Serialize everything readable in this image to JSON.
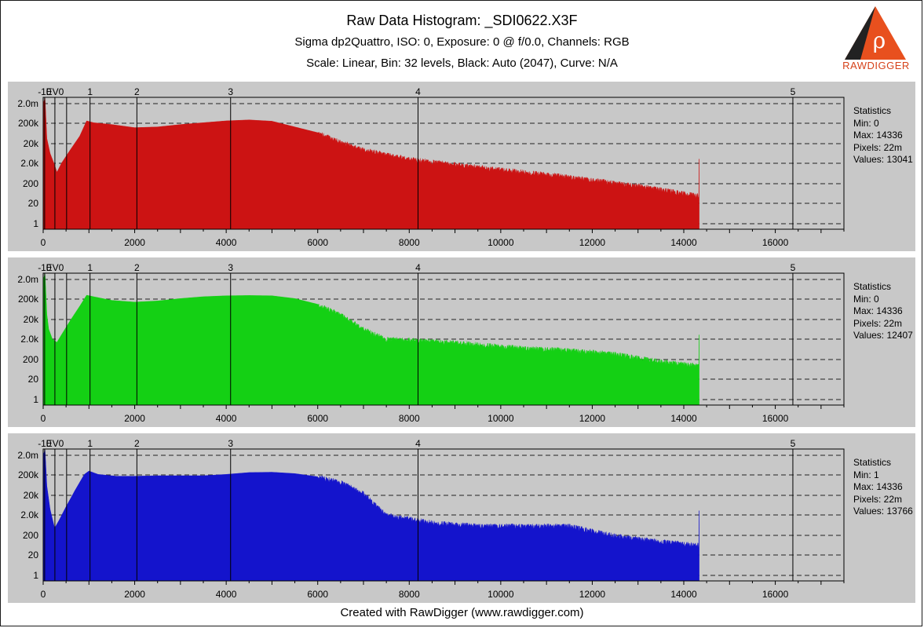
{
  "header": {
    "title": "Raw Data Histogram: _SDI0622.X3F",
    "subtitle": "Sigma dp2Quattro, ISO: 0, Exposure: 0 @ f/0.0, Channels: RGB",
    "scale_line": "Scale: Linear, Bin: 32 levels, Black: Auto (2047), Curve: N/A"
  },
  "logo": {
    "text": "RAWDIGGER",
    "icon": "rawdigger-triangle-logo-icon",
    "color": "#e8501e"
  },
  "footer": "Created with RawDigger (www.rawdigger.com)",
  "colors": {
    "red": "#cc1313",
    "green": "#14d014",
    "blue": "#1414cc",
    "panel_bg": "#c8c8c8"
  },
  "panels": [
    {
      "stats": {
        "title": "Statistics",
        "min": "Min: 0",
        "max": "Max: 14336",
        "pixels": "Pixels: 22m",
        "values": "Values: 13041"
      }
    },
    {
      "stats": {
        "title": "Statistics",
        "min": "Min: 0",
        "max": "Max: 14336",
        "pixels": "Pixels: 22m",
        "values": "Values: 12407"
      }
    },
    {
      "stats": {
        "title": "Statistics",
        "min": "Min: 1",
        "max": "Max: 14336",
        "pixels": "Pixels: 22m",
        "values": "Values: 13766"
      }
    }
  ],
  "chart_data": [
    {
      "type": "area",
      "channel": "red",
      "color": "#cc1313",
      "xlim": [
        0,
        17500
      ],
      "y_scale": "log",
      "y_ticks": [
        "1",
        "20",
        "200",
        "2.0k",
        "20k",
        "200k",
        "2.0m"
      ],
      "x_ticks": [
        0,
        2000,
        4000,
        6000,
        8000,
        10000,
        12000,
        14000,
        16000
      ],
      "ev_markers": [
        {
          "x": 32,
          "label": "-10"
        },
        {
          "x": 256,
          "label": "EV0"
        },
        {
          "x": 512,
          "label": ""
        },
        {
          "x": 1024,
          "label": "1"
        },
        {
          "x": 2048,
          "label": "2"
        },
        {
          "x": 4096,
          "label": "3"
        },
        {
          "x": 8192,
          "label": "4"
        },
        {
          "x": 16384,
          "label": "5"
        }
      ],
      "points": [
        [
          0,
          2000000
        ],
        [
          40,
          4000000
        ],
        [
          80,
          30000
        ],
        [
          150,
          5000
        ],
        [
          250,
          1200
        ],
        [
          300,
          500
        ],
        [
          400,
          1500
        ],
        [
          600,
          8000
        ],
        [
          800,
          40000
        ],
        [
          950,
          250000
        ],
        [
          1100,
          200000
        ],
        [
          1500,
          160000
        ],
        [
          2000,
          110000
        ],
        [
          2500,
          120000
        ],
        [
          3000,
          160000
        ],
        [
          3500,
          200000
        ],
        [
          4000,
          250000
        ],
        [
          4500,
          280000
        ],
        [
          5000,
          240000
        ],
        [
          5500,
          120000
        ],
        [
          6000,
          60000
        ],
        [
          6500,
          20000
        ],
        [
          7000,
          8000
        ],
        [
          8000,
          2500
        ],
        [
          9000,
          1300
        ],
        [
          10000,
          700
        ],
        [
          11000,
          400
        ],
        [
          12000,
          200
        ],
        [
          13000,
          100
        ],
        [
          14000,
          40
        ],
        [
          14330,
          30
        ],
        [
          14336,
          2500
        ]
      ]
    },
    {
      "type": "area",
      "channel": "green",
      "color": "#14d014",
      "xlim": [
        0,
        17500
      ],
      "y_scale": "log",
      "y_ticks": [
        "1",
        "20",
        "200",
        "2.0k",
        "20k",
        "200k",
        "2.0m"
      ],
      "x_ticks": [
        0,
        2000,
        4000,
        6000,
        8000,
        10000,
        12000,
        14000,
        16000
      ],
      "ev_markers": [
        {
          "x": 32,
          "label": "-10"
        },
        {
          "x": 256,
          "label": "EV0"
        },
        {
          "x": 512,
          "label": ""
        },
        {
          "x": 1024,
          "label": "1"
        },
        {
          "x": 2048,
          "label": "2"
        },
        {
          "x": 4096,
          "label": "3"
        },
        {
          "x": 8192,
          "label": "4"
        },
        {
          "x": 16384,
          "label": "5"
        }
      ],
      "points": [
        [
          0,
          2000000
        ],
        [
          40,
          4000000
        ],
        [
          80,
          30000
        ],
        [
          120,
          5000
        ],
        [
          200,
          1500
        ],
        [
          300,
          1000
        ],
        [
          400,
          2500
        ],
        [
          600,
          15000
        ],
        [
          800,
          80000
        ],
        [
          950,
          300000
        ],
        [
          1100,
          250000
        ],
        [
          1500,
          160000
        ],
        [
          2000,
          130000
        ],
        [
          2500,
          150000
        ],
        [
          3000,
          200000
        ],
        [
          3500,
          250000
        ],
        [
          4000,
          280000
        ],
        [
          4500,
          290000
        ],
        [
          5000,
          280000
        ],
        [
          5500,
          200000
        ],
        [
          6000,
          100000
        ],
        [
          6500,
          30000
        ],
        [
          7000,
          5000
        ],
        [
          7500,
          1500
        ],
        [
          8500,
          1200
        ],
        [
          9500,
          800
        ],
        [
          10500,
          500
        ],
        [
          11500,
          400
        ],
        [
          12500,
          250
        ],
        [
          13500,
          100
        ],
        [
          14330,
          60
        ],
        [
          14336,
          2500
        ]
      ]
    },
    {
      "type": "area",
      "channel": "blue",
      "color": "#1414cc",
      "xlim": [
        0,
        17500
      ],
      "y_scale": "log",
      "y_ticks": [
        "1",
        "20",
        "200",
        "2.0k",
        "20k",
        "200k",
        "2.0m"
      ],
      "x_ticks": [
        0,
        2000,
        4000,
        6000,
        8000,
        10000,
        12000,
        14000,
        16000
      ],
      "ev_markers": [
        {
          "x": 32,
          "label": "-10"
        },
        {
          "x": 256,
          "label": "EV0"
        },
        {
          "x": 512,
          "label": ""
        },
        {
          "x": 1024,
          "label": "1"
        },
        {
          "x": 2048,
          "label": "2"
        },
        {
          "x": 4096,
          "label": "3"
        },
        {
          "x": 8192,
          "label": "4"
        },
        {
          "x": 16384,
          "label": "5"
        }
      ],
      "points": [
        [
          0,
          2000000
        ],
        [
          40,
          4000000
        ],
        [
          80,
          50000
        ],
        [
          150,
          3000
        ],
        [
          250,
          300
        ],
        [
          350,
          800
        ],
        [
          500,
          4000
        ],
        [
          700,
          30000
        ],
        [
          900,
          200000
        ],
        [
          1000,
          300000
        ],
        [
          1200,
          200000
        ],
        [
          1600,
          160000
        ],
        [
          2000,
          160000
        ],
        [
          2500,
          170000
        ],
        [
          3000,
          170000
        ],
        [
          3500,
          170000
        ],
        [
          4000,
          200000
        ],
        [
          4500,
          250000
        ],
        [
          5000,
          260000
        ],
        [
          5500,
          220000
        ],
        [
          6000,
          150000
        ],
        [
          6500,
          80000
        ],
        [
          7000,
          20000
        ],
        [
          7500,
          1500
        ],
        [
          8500,
          600
        ],
        [
          9500,
          400
        ],
        [
          10500,
          400
        ],
        [
          11500,
          400
        ],
        [
          12500,
          120
        ],
        [
          13500,
          60
        ],
        [
          14330,
          40
        ],
        [
          14336,
          2500
        ]
      ]
    }
  ]
}
